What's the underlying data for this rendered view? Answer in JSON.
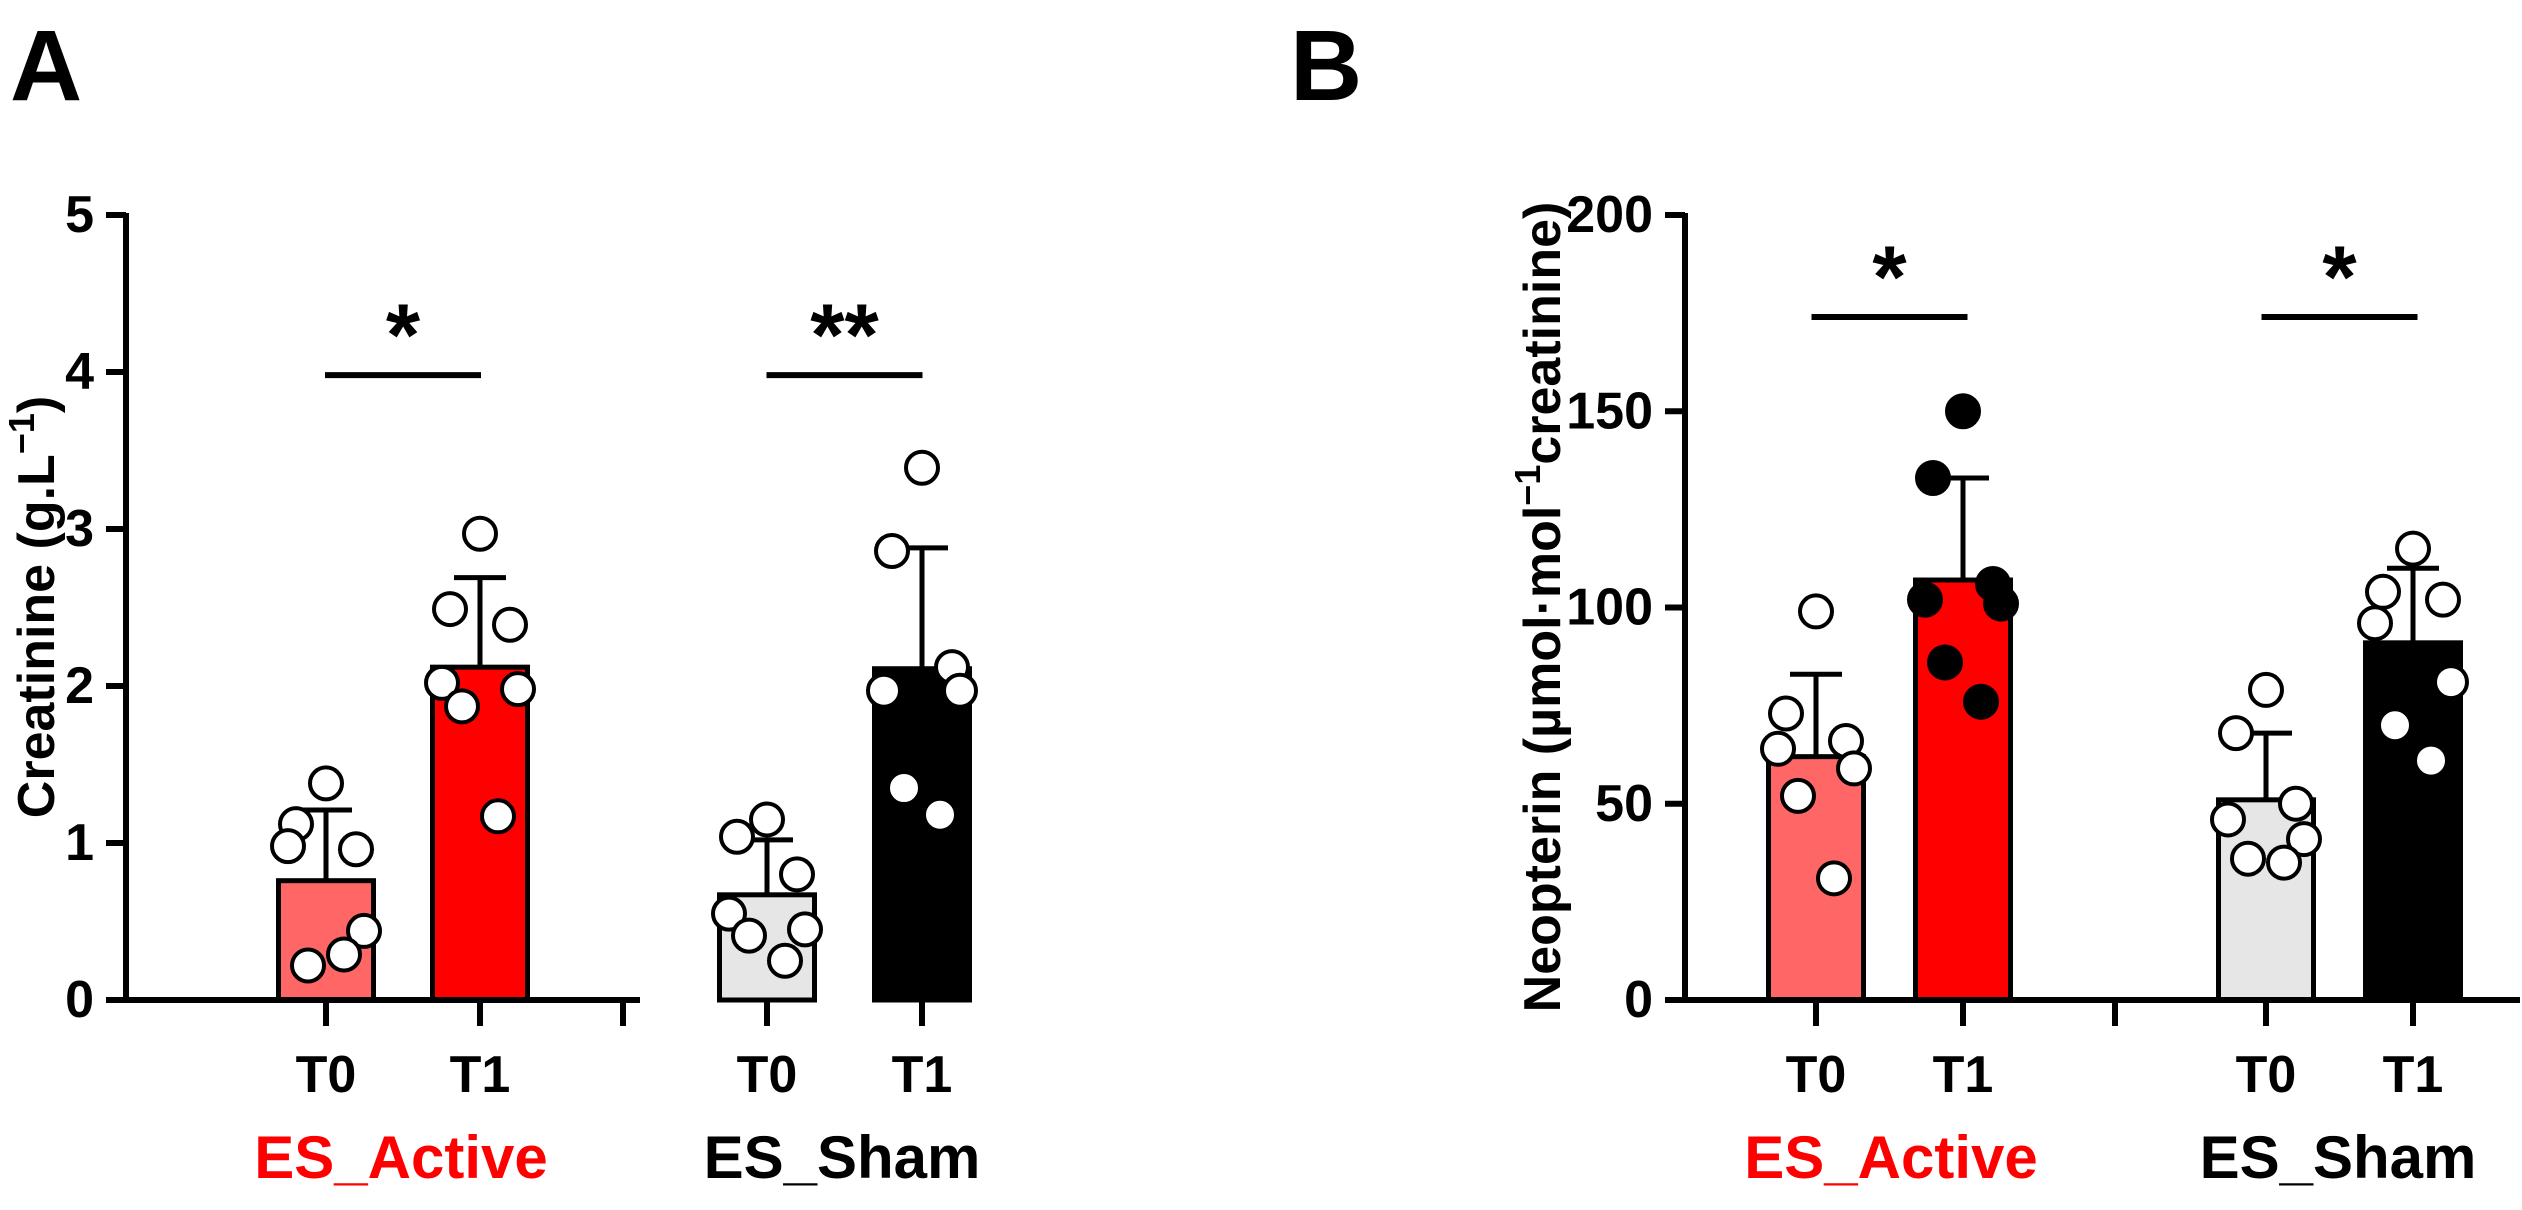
{
  "colors": {
    "active_t0": "#ff6666",
    "active_t1": "#ff0000",
    "sham_t0": "#e6e6e6",
    "sham_t1": "#000000",
    "active_label": "#ff0000",
    "sham_label": "#000000",
    "axis": "#000000"
  },
  "chart_data": [
    {
      "type": "bar",
      "panel_label": "A",
      "title": "",
      "xlabel": "",
      "ylabel": "Creatinine (g.L−1)",
      "ylabel_main": "Creatinine (g.L",
      "ylabel_sup": "−1",
      "ylabel_tail": ")",
      "ylim": [
        0,
        5
      ],
      "yticks": [
        0,
        1,
        2,
        3,
        4,
        5
      ],
      "ytick_labels": [
        "0",
        "1",
        "2",
        "3",
        "4",
        "5"
      ],
      "categories": [
        "T0",
        "T1",
        "T0",
        "T1"
      ],
      "groups": [
        {
          "name": "ES_Active",
          "categories": [
            "T0",
            "T1"
          ]
        },
        {
          "name": "ES_Sham",
          "categories": [
            "T0",
            "T1"
          ]
        }
      ],
      "series": [
        {
          "name": "ES_Active T0",
          "group": "ES_Active",
          "category": "T0",
          "mean": 0.76,
          "sd": 0.45,
          "fill": "active_t0",
          "points": [
            1.38,
            1.12,
            0.96,
            0.98,
            0.44,
            0.22,
            0.29
          ],
          "point_fill": "white"
        },
        {
          "name": "ES_Active T1",
          "group": "ES_Active",
          "category": "T1",
          "mean": 2.12,
          "sd": 0.57,
          "fill": "active_t1",
          "points": [
            2.97,
            2.49,
            2.39,
            2.02,
            1.98,
            1.87,
            1.17
          ],
          "point_fill": "white"
        },
        {
          "name": "ES_Sham T0",
          "group": "ES_Sham",
          "category": "T0",
          "mean": 0.67,
          "sd": 0.35,
          "fill": "sham_t0",
          "points": [
            1.15,
            1.04,
            0.8,
            0.55,
            0.45,
            0.41,
            0.25
          ],
          "point_fill": "white"
        },
        {
          "name": "ES_Sham T1",
          "group": "ES_Sham",
          "category": "T1",
          "mean": 2.11,
          "sd": 0.77,
          "fill": "sham_t1",
          "points": [
            3.39,
            2.86,
            2.12,
            1.97,
            1.97,
            1.35,
            1.18
          ],
          "point_fill": "white"
        }
      ],
      "significance": [
        {
          "group": "ES_Active",
          "label": "*",
          "y": 3.98
        },
        {
          "group": "ES_Sham",
          "label": "**",
          "y": 3.98
        }
      ]
    },
    {
      "type": "bar",
      "panel_label": "B",
      "title": "",
      "xlabel": "",
      "ylabel": "Neopterin (µmol·mol−1creatinine)",
      "ylabel_main": "Neopterin (µmol·mol",
      "ylabel_sup": "−1",
      "ylabel_tail": "creatinine)",
      "ylim": [
        0,
        200
      ],
      "yticks": [
        0,
        50,
        100,
        150,
        200
      ],
      "ytick_labels": [
        "0",
        "50",
        "100",
        "150",
        "200"
      ],
      "categories": [
        "T0",
        "T1",
        "T0",
        "T1"
      ],
      "groups": [
        {
          "name": "ES_Active",
          "categories": [
            "T0",
            "T1"
          ]
        },
        {
          "name": "ES_Sham",
          "categories": [
            "T0",
            "T1"
          ]
        }
      ],
      "series": [
        {
          "name": "ES_Active T0",
          "group": "ES_Active",
          "category": "T0",
          "mean": 62,
          "sd": 21,
          "fill": "active_t0",
          "points": [
            99,
            73,
            66,
            64,
            59,
            52,
            31
          ],
          "point_fill": "white"
        },
        {
          "name": "ES_Active T1",
          "group": "ES_Active",
          "category": "T1",
          "mean": 107,
          "sd": 26,
          "fill": "active_t1",
          "points": [
            150,
            133,
            106,
            102,
            101,
            86,
            76
          ],
          "point_fill": "black"
        },
        {
          "name": "ES_Sham T0",
          "group": "ES_Sham",
          "category": "T0",
          "mean": 51,
          "sd": 17,
          "fill": "sham_t0",
          "points": [
            79,
            68,
            50,
            46,
            41,
            36,
            35
          ],
          "point_fill": "white"
        },
        {
          "name": "ES_Sham T1",
          "group": "ES_Sham",
          "category": "T1",
          "mean": 91,
          "sd": 19,
          "fill": "sham_t1",
          "points": [
            115,
            104,
            102,
            96,
            81,
            70,
            61
          ],
          "point_fill": "white"
        }
      ],
      "significance": [
        {
          "group": "ES_Active",
          "label": "*",
          "y": 174
        },
        {
          "group": "ES_Sham",
          "label": "*",
          "y": 174
        }
      ]
    }
  ]
}
